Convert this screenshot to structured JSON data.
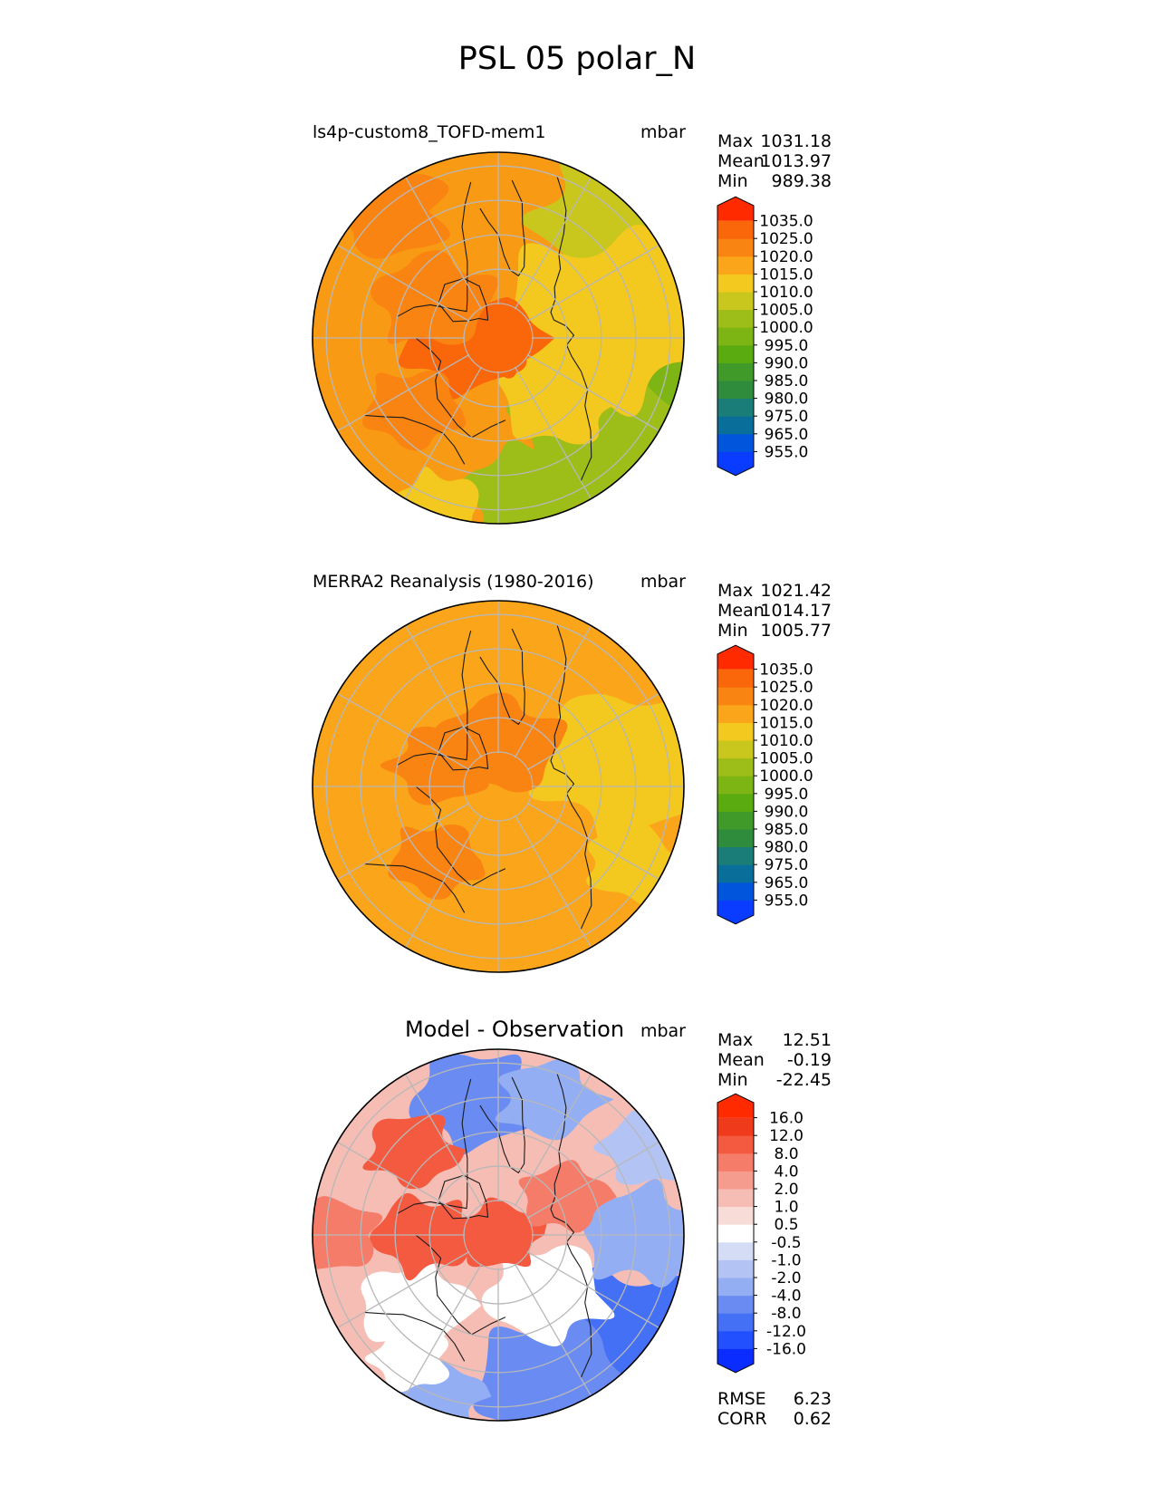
{
  "figure": {
    "title": "PSL 05 polar_N"
  },
  "chart_data": [
    {
      "type": "heatmap",
      "name": "model",
      "title": "ls4p-custom8_TOFD-mem1",
      "units": "mbar",
      "projection": "north-polar-stereographic",
      "stats": [
        {
          "label": "Max",
          "value": "1031.18"
        },
        {
          "label": "Mean",
          "value": "1013.97"
        },
        {
          "label": "Min",
          "value": "989.38"
        }
      ],
      "levels": [
        "955.0",
        "965.0",
        "975.0",
        "980.0",
        "985.0",
        "990.0",
        "995.0",
        "1000.0",
        "1005.0",
        "1010.0",
        "1015.0",
        "1020.0",
        "1025.0",
        "1035.0"
      ],
      "colors": [
        "#0a3cff",
        "#0055dd",
        "#0a6e9a",
        "#1a7d78",
        "#2f8c3c",
        "#3f9a2a",
        "#5aab10",
        "#7cb514",
        "#9dbd18",
        "#c9c71e",
        "#f3c81f",
        "#fba51a",
        "#fa8412",
        "#fa660a",
        "#ff2a00"
      ],
      "background": "#f99a15",
      "regions": [
        {
          "lon": 110,
          "colat": 48,
          "size": 55,
          "value": 995
        },
        {
          "lon": 135,
          "colat": 44,
          "size": 60,
          "value": 1000
        },
        {
          "lon": 170,
          "colat": 46,
          "size": 40,
          "value": 1000
        },
        {
          "lon": 45,
          "colat": 50,
          "size": 55,
          "value": 1005
        },
        {
          "lon": 80,
          "colat": 32,
          "size": 70,
          "value": 1010
        },
        {
          "lon": 135,
          "colat": 25,
          "size": 38,
          "value": 1010
        },
        {
          "lon": 200,
          "colat": 52,
          "size": 28,
          "value": 1010
        },
        {
          "lon": 260,
          "colat": 10,
          "size": 40,
          "value": 1025
        },
        {
          "lon": 0,
          "colat": 0,
          "size": 30,
          "value": 1025
        },
        {
          "lon": 300,
          "colat": 22,
          "size": 38,
          "value": 1020
        },
        {
          "lon": 320,
          "colat": 48,
          "size": 38,
          "value": 1020
        },
        {
          "lon": 230,
          "colat": 32,
          "size": 32,
          "value": 1020
        }
      ]
    },
    {
      "type": "heatmap",
      "name": "observation",
      "title": "MERRA2 Reanalysis (1980-2016)",
      "units": "mbar",
      "projection": "north-polar-stereographic",
      "stats": [
        {
          "label": "Max",
          "value": "1021.42"
        },
        {
          "lon": null,
          "label": "Mean",
          "value": "1014.17"
        },
        {
          "label": "Min",
          "value": "1005.77"
        }
      ],
      "levels": [
        "955.0",
        "965.0",
        "975.0",
        "980.0",
        "985.0",
        "990.0",
        "995.0",
        "1000.0",
        "1005.0",
        "1010.0",
        "1015.0",
        "1020.0",
        "1025.0",
        "1035.0"
      ],
      "colors": [
        "#0a3cff",
        "#0055dd",
        "#0a6e9a",
        "#1a7d78",
        "#2f8c3c",
        "#3f9a2a",
        "#5aab10",
        "#7cb514",
        "#9dbd18",
        "#c9c71e",
        "#f3c81f",
        "#fba51a",
        "#fa8412",
        "#fa660a",
        "#ff2a00"
      ],
      "background": "#fba51a",
      "regions": [
        {
          "lon": 80,
          "colat": 38,
          "size": 60,
          "value": 1010
        },
        {
          "lon": 120,
          "colat": 45,
          "size": 30,
          "value": 1010
        },
        {
          "lon": 0,
          "colat": 12,
          "size": 40,
          "value": 1020
        },
        {
          "lon": 290,
          "colat": 18,
          "size": 32,
          "value": 1020
        },
        {
          "lon": 220,
          "colat": 28,
          "size": 30,
          "value": 1020
        }
      ]
    },
    {
      "type": "heatmap",
      "name": "difference",
      "title": "Model - Observation",
      "units": "mbar",
      "projection": "north-polar-stereographic",
      "stats": [
        {
          "label": "Max",
          "value": "12.51"
        },
        {
          "label": "Mean",
          "value": "-0.19"
        },
        {
          "label": "Min",
          "value": "-22.45"
        }
      ],
      "metrics": [
        {
          "label": "RMSE",
          "value": "6.23"
        },
        {
          "label": "CORR",
          "value": "0.62"
        }
      ],
      "levels": [
        "-16.0",
        "-12.0",
        "-8.0",
        "-4.0",
        "-2.0",
        "-1.0",
        "-0.5",
        "0.5",
        "1.0",
        "2.0",
        "4.0",
        "8.0",
        "12.0",
        "16.0"
      ],
      "colors": [
        "#0a2cff",
        "#2250ff",
        "#4470f6",
        "#6a8cf2",
        "#93aef2",
        "#b3c4f4",
        "#d4dcf6",
        "#ffffff",
        "#f8dcd8",
        "#f6bdb5",
        "#f59c8f",
        "#f67c6a",
        "#f45a40",
        "#f03a1c",
        "#ff2a00"
      ],
      "background": "#f6bdb5",
      "regions": [
        {
          "lon": 130,
          "colat": 46,
          "size": 55,
          "value": -12
        },
        {
          "lon": 160,
          "colat": 45,
          "size": 50,
          "value": -8
        },
        {
          "lon": 90,
          "colat": 42,
          "size": 40,
          "value": -4
        },
        {
          "lon": 60,
          "colat": 50,
          "size": 30,
          "value": -2
        },
        {
          "lon": 350,
          "colat": 40,
          "size": 40,
          "value": -8
        },
        {
          "lon": 20,
          "colat": 42,
          "size": 32,
          "value": -4
        },
        {
          "lon": 200,
          "colat": 50,
          "size": 28,
          "value": -4
        },
        {
          "lon": 215,
          "colat": 44,
          "size": 26,
          "value": 0
        },
        {
          "lon": 140,
          "colat": 22,
          "size": 40,
          "value": 0
        },
        {
          "lon": 230,
          "colat": 32,
          "size": 36,
          "value": 0
        },
        {
          "lon": 0,
          "colat": 0,
          "size": 28,
          "value": 8
        },
        {
          "lon": 270,
          "colat": 22,
          "size": 32,
          "value": 8
        },
        {
          "lon": 315,
          "colat": 35,
          "size": 30,
          "value": 8
        },
        {
          "lon": 60,
          "colat": 22,
          "size": 28,
          "value": 4
        },
        {
          "lon": 270,
          "colat": 48,
          "size": 30,
          "value": 4
        }
      ]
    }
  ]
}
